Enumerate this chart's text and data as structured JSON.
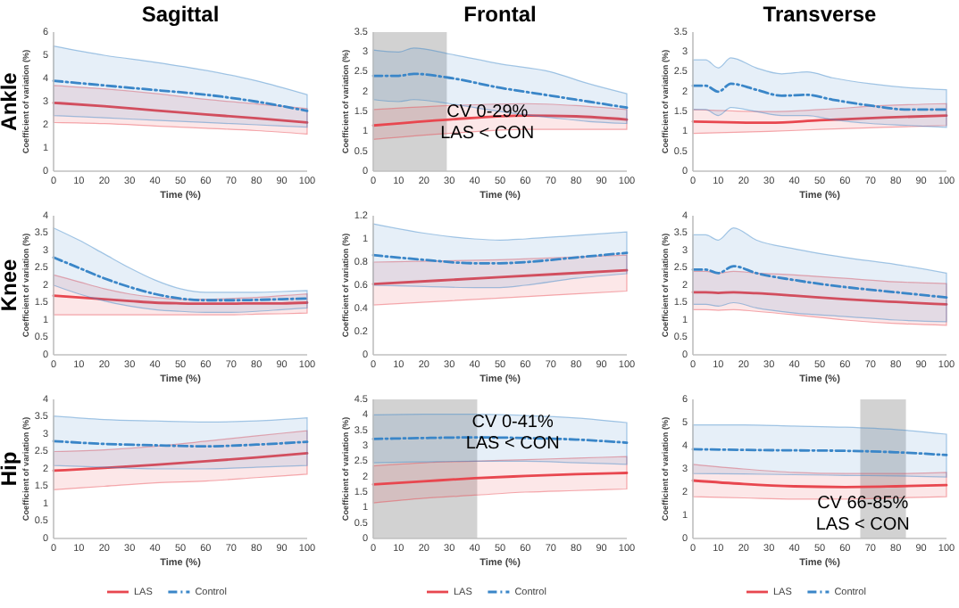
{
  "chart_data": [
    {
      "type": "line",
      "title": "Sagittal",
      "annotations": [
        "Ankle"
      ],
      "xlabel": "Time (%)",
      "ylabel": "Coefficient of variation (%)",
      "xlim": [
        0,
        100
      ],
      "xticks": [
        0,
        10,
        20,
        30,
        40,
        50,
        60,
        70,
        80,
        90,
        100
      ],
      "ylim": [
        0,
        6
      ],
      "yticks": [
        0,
        1,
        2,
        3,
        4,
        5,
        6
      ],
      "legend": false,
      "series": [
        {
          "color": "#e8474f",
          "line_style": "solid",
          "x": [
            0,
            20,
            40,
            60,
            80,
            100
          ],
          "values": [
            2.95,
            2.8,
            2.62,
            2.45,
            2.28,
            2.1
          ],
          "upper": [
            3.7,
            3.55,
            3.35,
            3.1,
            2.9,
            2.7
          ],
          "lower": [
            2.1,
            2.05,
            1.95,
            1.85,
            1.75,
            1.6
          ]
        },
        {
          "color": "#3a86c8",
          "line_style": "dashdot",
          "x": [
            0,
            20,
            40,
            60,
            80,
            100
          ],
          "values": [
            3.9,
            3.7,
            3.5,
            3.3,
            3.0,
            2.6
          ],
          "upper": [
            5.4,
            5.0,
            4.7,
            4.35,
            3.9,
            3.3
          ],
          "lower": [
            2.4,
            2.3,
            2.2,
            2.1,
            2.0,
            1.9
          ]
        }
      ]
    },
    {
      "type": "line",
      "title": "Frontal",
      "xlabel": "Time (%)",
      "ylabel": "Coefficient of variation (%)",
      "xlim": [
        0,
        100
      ],
      "xticks": [
        0,
        10,
        20,
        30,
        40,
        50,
        60,
        70,
        80,
        90,
        100
      ],
      "ylim": [
        0,
        3.5
      ],
      "yticks": [
        0,
        0.5,
        1,
        1.5,
        2,
        2.5,
        3,
        3.5
      ],
      "legend": false,
      "bands": [
        {
          "axis": "x",
          "from": 0,
          "to": 29,
          "color": "#bfbfbf"
        }
      ],
      "annotations": [
        {
          "text": "CV 0-29%\nLAS < CON",
          "x": 45,
          "y": 1.1
        }
      ],
      "series": [
        {
          "color": "#e8474f",
          "line_style": "solid",
          "x": [
            0,
            30,
            60,
            80,
            100
          ],
          "values": [
            1.15,
            1.3,
            1.4,
            1.38,
            1.3
          ],
          "upper": [
            1.55,
            1.65,
            1.7,
            1.65,
            1.55
          ],
          "lower": [
            0.8,
            0.95,
            1.05,
            1.05,
            1.05
          ]
        },
        {
          "color": "#3a86c8",
          "line_style": "dashdot",
          "x": [
            0,
            10,
            16,
            30,
            50,
            70,
            85,
            100
          ],
          "values": [
            2.4,
            2.4,
            2.45,
            2.35,
            2.1,
            1.9,
            1.75,
            1.6
          ],
          "upper": [
            3.05,
            3.0,
            3.1,
            2.95,
            2.7,
            2.5,
            2.2,
            1.95
          ],
          "lower": [
            1.8,
            1.75,
            1.8,
            1.7,
            1.5,
            1.35,
            1.25,
            1.2
          ]
        }
      ]
    },
    {
      "type": "line",
      "title": "Transverse",
      "xlabel": "Time (%)",
      "ylabel": "Coefficient of variation (%)",
      "xlim": [
        0,
        100
      ],
      "xticks": [
        0,
        10,
        20,
        30,
        40,
        50,
        60,
        70,
        80,
        90,
        100
      ],
      "ylim": [
        0,
        3.5
      ],
      "yticks": [
        0,
        0.5,
        1,
        1.5,
        2,
        2.5,
        3,
        3.5
      ],
      "legend": false,
      "series": [
        {
          "color": "#e8474f",
          "line_style": "solid",
          "x": [
            0,
            30,
            50,
            75,
            100
          ],
          "values": [
            1.25,
            1.22,
            1.28,
            1.35,
            1.4
          ],
          "upper": [
            1.55,
            1.5,
            1.55,
            1.65,
            1.7
          ],
          "lower": [
            0.95,
            1.0,
            1.05,
            1.1,
            1.15
          ]
        },
        {
          "color": "#3a86c8",
          "line_style": "dashdot",
          "x": [
            0,
            5,
            10,
            15,
            25,
            35,
            45,
            55,
            70,
            85,
            100
          ],
          "values": [
            2.15,
            2.15,
            2.0,
            2.2,
            2.05,
            1.9,
            1.92,
            1.8,
            1.65,
            1.55,
            1.55
          ],
          "upper": [
            2.8,
            2.8,
            2.6,
            2.85,
            2.6,
            2.45,
            2.5,
            2.35,
            2.2,
            2.1,
            2.05
          ],
          "lower": [
            1.55,
            1.55,
            1.4,
            1.6,
            1.5,
            1.4,
            1.4,
            1.3,
            1.2,
            1.15,
            1.1
          ]
        }
      ]
    },
    {
      "type": "line",
      "annotations": [
        "Knee"
      ],
      "xlabel": "Time (%)",
      "ylabel": "Coefficient of variation (%)",
      "xlim": [
        0,
        100
      ],
      "xticks": [
        0,
        10,
        20,
        30,
        40,
        50,
        60,
        70,
        80,
        90,
        100
      ],
      "ylim": [
        0,
        4
      ],
      "yticks": [
        0,
        0.5,
        1,
        1.5,
        2,
        2.5,
        3,
        3.5,
        4
      ],
      "legend": false,
      "series": [
        {
          "color": "#e8474f",
          "line_style": "solid",
          "x": [
            0,
            10,
            20,
            30,
            40,
            50,
            60,
            70,
            80,
            90,
            100
          ],
          "values": [
            1.7,
            1.65,
            1.6,
            1.55,
            1.5,
            1.48,
            1.47,
            1.47,
            1.48,
            1.48,
            1.5
          ],
          "upper": [
            2.3,
            2.1,
            1.9,
            1.75,
            1.65,
            1.6,
            1.6,
            1.62,
            1.65,
            1.7,
            1.75
          ],
          "lower": [
            1.15,
            1.15,
            1.15,
            1.15,
            1.15,
            1.15,
            1.15,
            1.15,
            1.17,
            1.18,
            1.2
          ]
        },
        {
          "color": "#3a86c8",
          "line_style": "dashdot",
          "x": [
            0,
            10,
            20,
            30,
            40,
            50,
            60,
            70,
            80,
            90,
            100
          ],
          "values": [
            2.8,
            2.5,
            2.2,
            1.95,
            1.75,
            1.62,
            1.57,
            1.57,
            1.58,
            1.6,
            1.62
          ],
          "upper": [
            3.65,
            3.3,
            2.9,
            2.5,
            2.15,
            1.9,
            1.8,
            1.8,
            1.8,
            1.82,
            1.85
          ],
          "lower": [
            2.0,
            1.75,
            1.55,
            1.4,
            1.3,
            1.25,
            1.22,
            1.22,
            1.25,
            1.3,
            1.35
          ]
        }
      ]
    },
    {
      "type": "line",
      "xlabel": "Time (%)",
      "ylabel": "Coefficient of variation (%)",
      "xlim": [
        0,
        100
      ],
      "xticks": [
        0,
        10,
        20,
        30,
        40,
        50,
        60,
        70,
        80,
        90,
        100
      ],
      "ylim": [
        0,
        1.2
      ],
      "yticks": [
        0,
        0.2,
        0.4,
        0.6,
        0.8,
        1,
        1.2
      ],
      "legend": false,
      "series": [
        {
          "color": "#e8474f",
          "line_style": "solid",
          "x": [
            0,
            50,
            100
          ],
          "values": [
            0.61,
            0.67,
            0.73
          ],
          "upper": [
            0.8,
            0.82,
            0.86
          ],
          "lower": [
            0.43,
            0.49,
            0.55
          ]
        },
        {
          "color": "#3a86c8",
          "line_style": "dashdot",
          "x": [
            0,
            20,
            40,
            50,
            60,
            80,
            100
          ],
          "values": [
            0.86,
            0.82,
            0.79,
            0.79,
            0.8,
            0.84,
            0.88
          ],
          "upper": [
            1.13,
            1.05,
            1.0,
            0.99,
            1.0,
            1.03,
            1.06
          ],
          "lower": [
            0.6,
            0.59,
            0.58,
            0.58,
            0.6,
            0.66,
            0.7
          ]
        }
      ]
    },
    {
      "type": "line",
      "xlabel": "Time (%)",
      "ylabel": "Coefficient of variation (%)",
      "xlim": [
        0,
        100
      ],
      "xticks": [
        0,
        10,
        20,
        30,
        40,
        50,
        60,
        70,
        80,
        90,
        100
      ],
      "ylim": [
        0,
        4
      ],
      "yticks": [
        0,
        0.5,
        1,
        1.5,
        2,
        2.5,
        3,
        3.5,
        4
      ],
      "legend": false,
      "series": [
        {
          "color": "#e8474f",
          "line_style": "solid",
          "x": [
            0,
            5,
            10,
            16,
            25,
            40,
            60,
            80,
            100
          ],
          "values": [
            1.8,
            1.8,
            1.78,
            1.8,
            1.77,
            1.7,
            1.6,
            1.52,
            1.45
          ],
          "upper": [
            2.4,
            2.4,
            2.35,
            2.4,
            2.35,
            2.3,
            2.2,
            2.1,
            2.05
          ],
          "lower": [
            1.3,
            1.3,
            1.28,
            1.3,
            1.25,
            1.15,
            1.0,
            0.9,
            0.85
          ]
        },
        {
          "color": "#3a86c8",
          "line_style": "dashdot",
          "x": [
            0,
            5,
            10,
            16,
            25,
            40,
            60,
            80,
            100
          ],
          "values": [
            2.45,
            2.45,
            2.35,
            2.55,
            2.35,
            2.15,
            1.95,
            1.8,
            1.65
          ],
          "upper": [
            3.45,
            3.45,
            3.3,
            3.65,
            3.3,
            3.05,
            2.8,
            2.6,
            2.35
          ],
          "lower": [
            1.45,
            1.45,
            1.4,
            1.5,
            1.35,
            1.2,
            1.1,
            1.0,
            0.95
          ]
        }
      ]
    },
    {
      "type": "line",
      "annotations": [
        "Hip"
      ],
      "xlabel": "Time (%)",
      "ylabel": "Coefficient of variation (%)",
      "xlim": [
        0,
        100
      ],
      "xticks": [
        0,
        10,
        20,
        30,
        40,
        50,
        60,
        70,
        80,
        90,
        100
      ],
      "ylim": [
        0,
        4
      ],
      "yticks": [
        0,
        0.5,
        1,
        1.5,
        2,
        2.5,
        3,
        3.5,
        4
      ],
      "legend": "bottom",
      "series": [
        {
          "name": "LAS",
          "color": "#e8474f",
          "line_style": "solid",
          "x": [
            0,
            20,
            40,
            60,
            80,
            100
          ],
          "values": [
            1.95,
            2.03,
            2.12,
            2.22,
            2.33,
            2.45
          ],
          "upper": [
            2.5,
            2.55,
            2.65,
            2.8,
            2.95,
            3.1
          ],
          "lower": [
            1.4,
            1.5,
            1.6,
            1.65,
            1.75,
            1.85
          ]
        },
        {
          "name": "Control",
          "color": "#3a86c8",
          "line_style": "dashdot",
          "x": [
            0,
            20,
            40,
            60,
            80,
            100
          ],
          "values": [
            2.8,
            2.72,
            2.68,
            2.65,
            2.7,
            2.78
          ],
          "upper": [
            3.52,
            3.42,
            3.38,
            3.35,
            3.38,
            3.47
          ],
          "lower": [
            2.1,
            2.05,
            2.0,
            2.0,
            2.05,
            2.1
          ]
        }
      ]
    },
    {
      "type": "line",
      "xlabel": "Time (%)",
      "ylabel": "Coefficient of variation (%)",
      "xlim": [
        0,
        100
      ],
      "xticks": [
        0,
        10,
        20,
        30,
        40,
        50,
        60,
        70,
        80,
        90,
        100
      ],
      "ylim": [
        0,
        4.5
      ],
      "yticks": [
        0,
        0.5,
        1,
        1.5,
        2,
        2.5,
        3,
        3.5,
        4,
        4.5
      ],
      "legend": "bottom",
      "bands": [
        {
          "axis": "x",
          "from": 0,
          "to": 41,
          "color": "#bfbfbf"
        }
      ],
      "annotations": [
        {
          "text": "CV 0-41%\nLAS < CON",
          "x": 55,
          "y": 3.25
        }
      ],
      "series": [
        {
          "name": "LAS",
          "color": "#e8474f",
          "line_style": "solid",
          "x": [
            0,
            20,
            40,
            60,
            80,
            100
          ],
          "values": [
            1.75,
            1.85,
            1.95,
            2.02,
            2.08,
            2.12
          ],
          "upper": [
            2.35,
            2.45,
            2.5,
            2.55,
            2.6,
            2.65
          ],
          "lower": [
            1.15,
            1.3,
            1.4,
            1.5,
            1.55,
            1.6
          ]
        },
        {
          "name": "Control",
          "color": "#3a86c8",
          "line_style": "dashdot",
          "x": [
            0,
            20,
            40,
            60,
            80,
            100
          ],
          "values": [
            3.22,
            3.25,
            3.27,
            3.25,
            3.2,
            3.1
          ],
          "upper": [
            4.0,
            4.02,
            4.02,
            3.98,
            3.9,
            3.75
          ],
          "lower": [
            2.45,
            2.48,
            2.5,
            2.5,
            2.45,
            2.4
          ]
        }
      ]
    },
    {
      "type": "line",
      "xlabel": "Time (%)",
      "ylabel": "Coefficient of variation (%)",
      "xlim": [
        0,
        100
      ],
      "xticks": [
        0,
        10,
        20,
        30,
        40,
        50,
        60,
        70,
        80,
        90,
        100
      ],
      "ylim": [
        0,
        6
      ],
      "yticks": [
        0,
        1,
        2,
        3,
        4,
        5,
        6
      ],
      "legend": "bottom",
      "bands": [
        {
          "axis": "x",
          "from": 66,
          "to": 84,
          "color": "#bfbfbf"
        }
      ],
      "annotations": [
        {
          "text": "CV 66-85%\nLAS < CON",
          "x": 67,
          "y": 0.85
        }
      ],
      "series": [
        {
          "name": "LAS",
          "color": "#e8474f",
          "line_style": "solid",
          "x": [
            0,
            20,
            40,
            60,
            80,
            100
          ],
          "values": [
            2.5,
            2.35,
            2.25,
            2.22,
            2.25,
            2.3
          ],
          "upper": [
            3.2,
            3.0,
            2.85,
            2.8,
            2.8,
            2.85
          ],
          "lower": [
            1.8,
            1.75,
            1.7,
            1.7,
            1.75,
            1.8
          ]
        },
        {
          "name": "Control",
          "color": "#3a86c8",
          "line_style": "dashdot",
          "x": [
            0,
            20,
            40,
            60,
            80,
            100
          ],
          "values": [
            3.85,
            3.82,
            3.8,
            3.78,
            3.72,
            3.6
          ],
          "upper": [
            4.9,
            4.9,
            4.85,
            4.8,
            4.7,
            4.5
          ],
          "lower": [
            2.8,
            2.78,
            2.75,
            2.72,
            2.7,
            2.65
          ]
        }
      ]
    }
  ]
}
